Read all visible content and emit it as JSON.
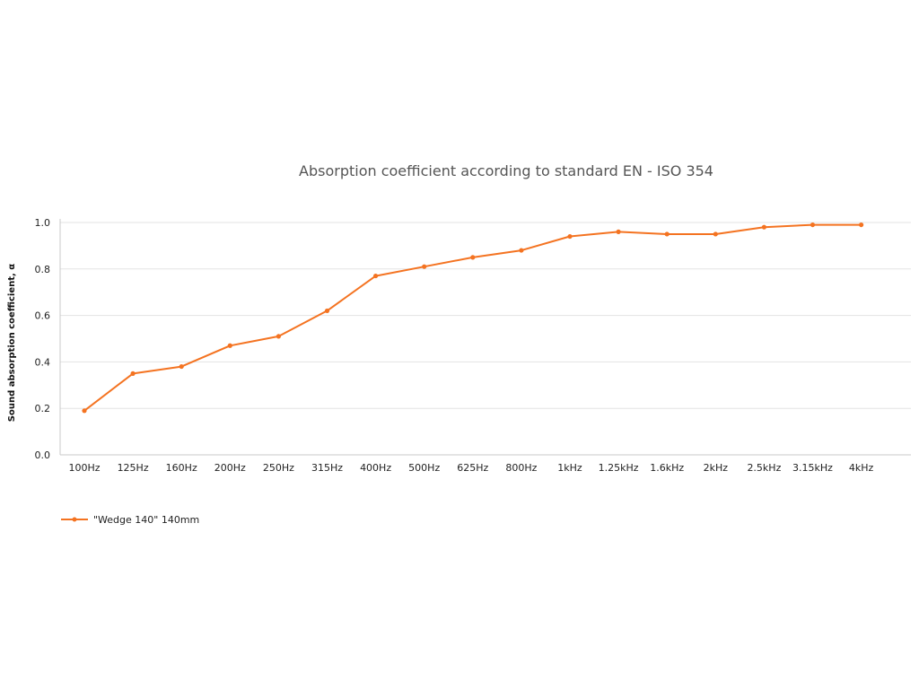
{
  "chart_data": {
    "type": "line",
    "title": "Absorption coefficient according to standard EN - ISO 354",
    "xlabel": "",
    "ylabel": "Sound absorption coefficient, α",
    "categories": [
      "100Hz",
      "125Hz",
      "160Hz",
      "200Hz",
      "250Hz",
      "315Hz",
      "400Hz",
      "500Hz",
      "625Hz",
      "800Hz",
      "1kHz",
      "1.25kHz",
      "1.6kHz",
      "2kHz",
      "2.5kHz",
      "3.15kHz",
      "4kHz"
    ],
    "series": [
      {
        "name": "\"Wedge 140\" 140mm",
        "color": "#f47321",
        "values": [
          0.19,
          0.35,
          0.38,
          0.47,
          0.51,
          0.62,
          0.77,
          0.81,
          0.85,
          0.88,
          0.94,
          0.96,
          0.95,
          0.95,
          0.98,
          0.99,
          0.99
        ]
      }
    ],
    "ylim": [
      0,
      1
    ],
    "yticks": [
      "0.0",
      "0.2",
      "0.4",
      "0.6",
      "0.8",
      "1.0"
    ],
    "grid": true,
    "legend_position": "bottom-left"
  }
}
